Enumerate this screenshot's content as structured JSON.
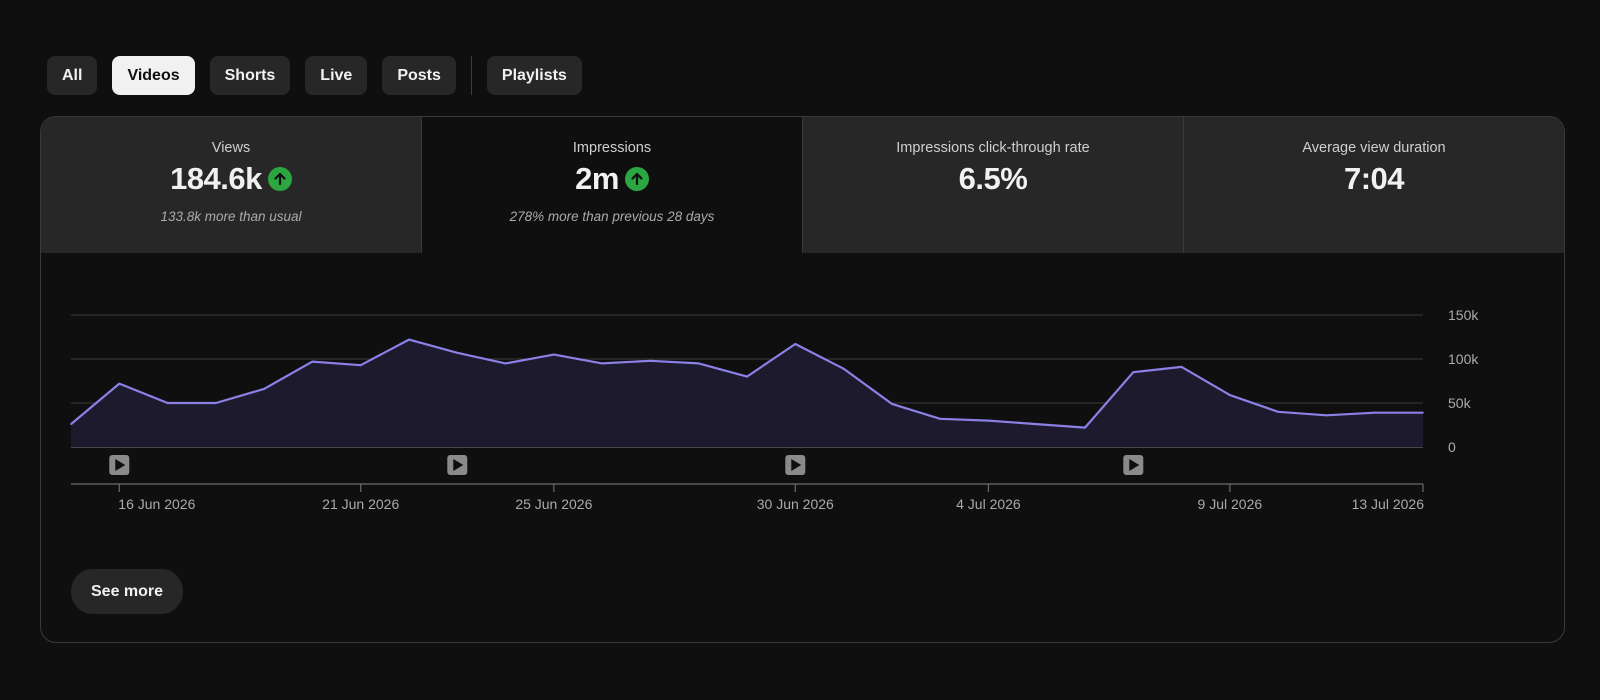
{
  "filters": {
    "items": [
      {
        "label": "All",
        "active": false
      },
      {
        "label": "Videos",
        "active": true
      },
      {
        "label": "Shorts",
        "active": false
      },
      {
        "label": "Live",
        "active": false
      },
      {
        "label": "Posts",
        "active": false
      }
    ],
    "playlists_label": "Playlists"
  },
  "metrics": [
    {
      "label": "Views",
      "value": "184.6k",
      "trend": "up",
      "note": "133.8k more than usual",
      "selected": false
    },
    {
      "label": "Impressions",
      "value": "2m",
      "trend": "up",
      "note": "278% more than previous 28 days",
      "selected": true
    },
    {
      "label": "Impressions click-through rate",
      "value": "6.5%",
      "trend": "",
      "note": "",
      "selected": false
    },
    {
      "label": "Average view duration",
      "value": "7:04",
      "trend": "",
      "note": "",
      "selected": false
    }
  ],
  "icons": {
    "trend_up": "arrow-up-circle-icon",
    "video_marker": "play-icon"
  },
  "colors": {
    "line": "#8b80e6",
    "area": "#1c1a2c",
    "trend_up": "#2ba640"
  },
  "chart_data": {
    "type": "area",
    "x": [
      "15 Jun 2026",
      "16 Jun 2026",
      "17 Jun 2026",
      "18 Jun 2026",
      "19 Jun 2026",
      "20 Jun 2026",
      "21 Jun 2026",
      "22 Jun 2026",
      "23 Jun 2026",
      "24 Jun 2026",
      "25 Jun 2026",
      "26 Jun 2026",
      "27 Jun 2026",
      "28 Jun 2026",
      "29 Jun 2026",
      "30 Jun 2026",
      "1 Jul 2026",
      "2 Jul 2026",
      "3 Jul 2026",
      "4 Jul 2026",
      "5 Jul 2026",
      "6 Jul 2026",
      "7 Jul 2026",
      "8 Jul 2026",
      "9 Jul 2026",
      "10 Jul 2026",
      "11 Jul 2026",
      "12 Jul 2026",
      "13 Jul 2026"
    ],
    "values": [
      26000,
      72000,
      50000,
      50000,
      66000,
      97000,
      93000,
      122000,
      107000,
      95000,
      105000,
      95000,
      98000,
      95000,
      80000,
      117000,
      89000,
      49000,
      32000,
      30000,
      26000,
      22000,
      85000,
      91000,
      59000,
      40000,
      36000,
      39000,
      39000
    ],
    "xticks": [
      "16 Jun 2026",
      "21 Jun 2026",
      "25 Jun 2026",
      "30 Jun 2026",
      "4 Jul 2026",
      "9 Jul 2026",
      "13 Jul 2026"
    ],
    "yticks": [
      "150k",
      "100k",
      "50k",
      "0"
    ],
    "ylim": [
      0,
      150000
    ],
    "video_markers": [
      "16 Jun 2026",
      "23 Jun 2026",
      "30 Jun 2026",
      "7 Jul 2026"
    ],
    "grid": true
  },
  "see_more_label": "See more"
}
